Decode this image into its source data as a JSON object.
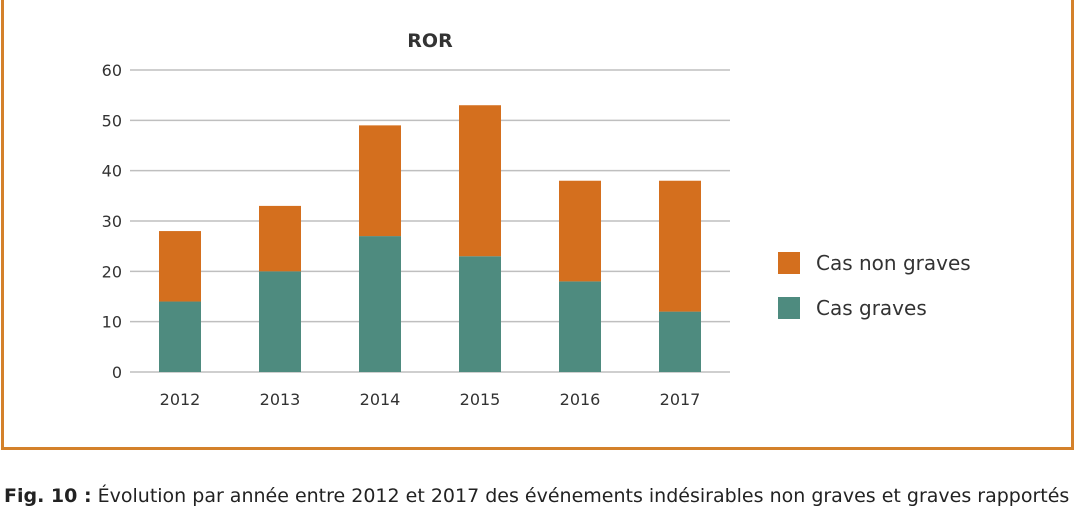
{
  "caption": {
    "label": "Fig. 10 :",
    "text": "Évolution par année entre 2012 et 2017 des événements indésirables non graves et graves rapportés"
  },
  "chart_data": {
    "type": "bar",
    "stacked": true,
    "title": "ROR",
    "xlabel": "",
    "ylabel": "",
    "categories": [
      "2012",
      "2013",
      "2014",
      "2015",
      "2016",
      "2017"
    ],
    "series": [
      {
        "name": "Cas graves",
        "values": [
          14,
          20,
          27,
          23,
          18,
          12
        ],
        "color": "#4e8b7f"
      },
      {
        "name": "Cas non graves",
        "values": [
          14,
          13,
          22,
          30,
          20,
          26
        ],
        "color": "#d46f1e"
      }
    ],
    "ylim": [
      0,
      60
    ],
    "yticks": [
      0,
      10,
      20,
      30,
      40,
      50,
      60
    ],
    "grid": true,
    "legend_position": "right",
    "legend_order": [
      "Cas non graves",
      "Cas graves"
    ]
  },
  "colors": {
    "frame": "#d4812a",
    "grid": "#bfbfbf"
  }
}
